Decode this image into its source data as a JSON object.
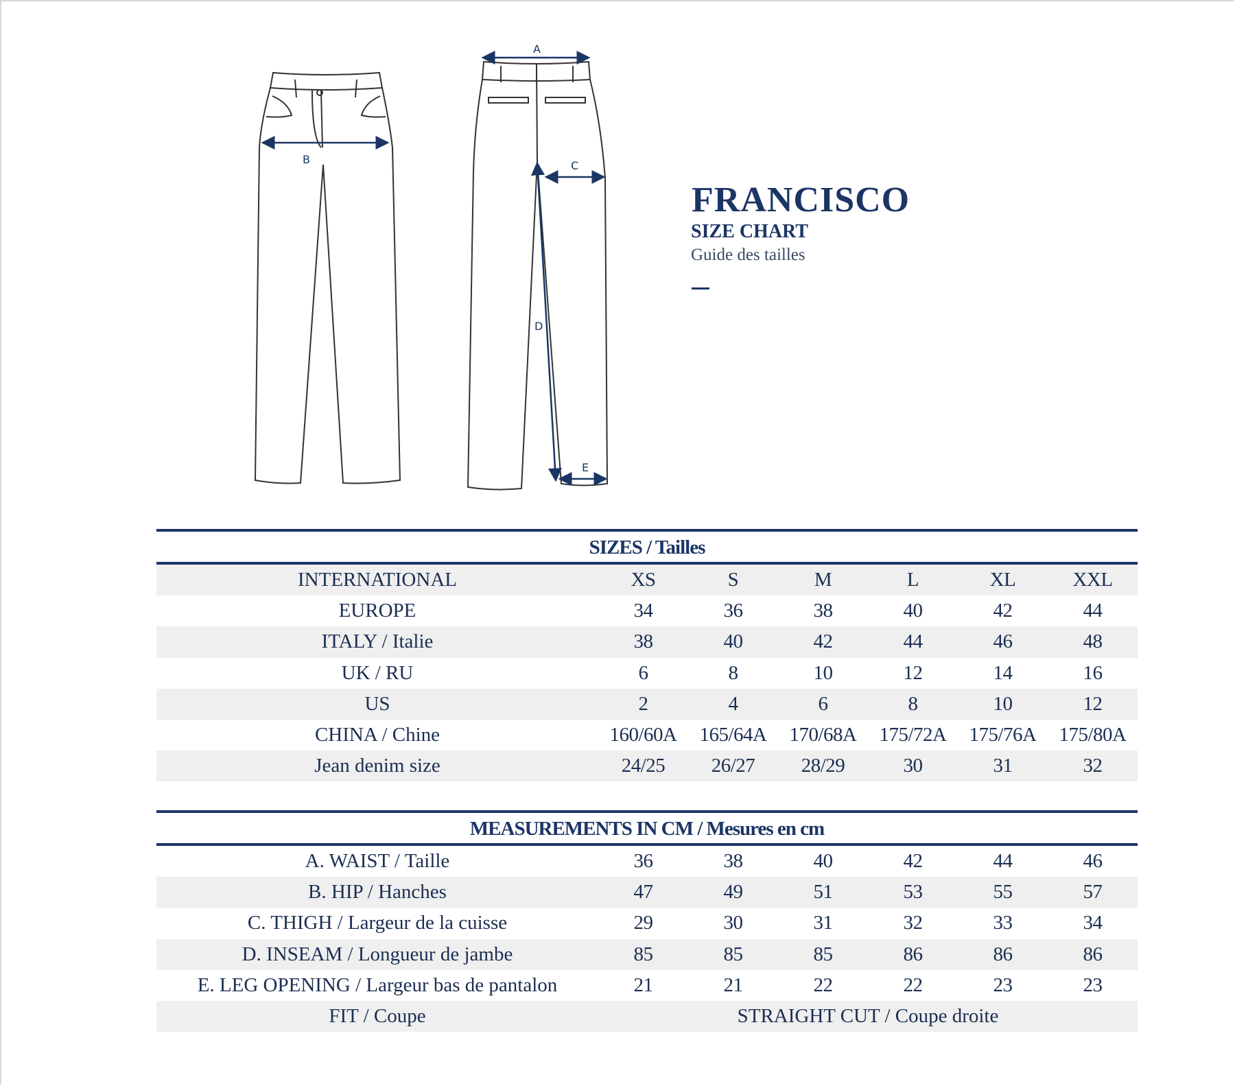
{
  "product": {
    "name": "FRANCISCO",
    "subtitle": "SIZE CHART",
    "subtitle_fr": "Guide des tailles"
  },
  "diagram": {
    "labels": {
      "A": "A",
      "B": "B",
      "C": "C",
      "D": "D",
      "E": "E"
    }
  },
  "colors": {
    "navy": "#1b3565",
    "stripe": "#efefef"
  },
  "sizes_table": {
    "title": "SIZES / Tailles",
    "rows": [
      {
        "label": "INTERNATIONAL",
        "values": [
          "XS",
          "S",
          "M",
          "L",
          "XL",
          "XXL"
        ]
      },
      {
        "label": "EUROPE",
        "values": [
          "34",
          "36",
          "38",
          "40",
          "42",
          "44"
        ]
      },
      {
        "label": "ITALY / Italie",
        "values": [
          "38",
          "40",
          "42",
          "44",
          "46",
          "48"
        ]
      },
      {
        "label": "UK / RU",
        "values": [
          "6",
          "8",
          "10",
          "12",
          "14",
          "16"
        ]
      },
      {
        "label": "US",
        "values": [
          "2",
          "4",
          "6",
          "8",
          "10",
          "12"
        ]
      },
      {
        "label": "CHINA / Chine",
        "values": [
          "160/60A",
          "165/64A",
          "170/68A",
          "175/72A",
          "175/76A",
          "175/80A"
        ]
      },
      {
        "label": "Jean denim size",
        "values": [
          "24/25",
          "26/27",
          "28/29",
          "30",
          "31",
          "32"
        ]
      }
    ]
  },
  "measurements_table": {
    "title": "MEASUREMENTS IN CM / Mesures en cm",
    "rows": [
      {
        "label": "A. WAIST / Taille",
        "values": [
          "36",
          "38",
          "40",
          "42",
          "44",
          "46"
        ]
      },
      {
        "label": "B. HIP / Hanches",
        "values": [
          "47",
          "49",
          "51",
          "53",
          "55",
          "57"
        ]
      },
      {
        "label": "C. THIGH  / Largeur de la cuisse",
        "values": [
          "29",
          "30",
          "31",
          "32",
          "33",
          "34"
        ]
      },
      {
        "label": "D. INSEAM  / Longueur de jambe",
        "values": [
          "85",
          "85",
          "85",
          "86",
          "86",
          "86"
        ]
      },
      {
        "label": "E. LEG OPENING / Largeur bas de pantalon",
        "values": [
          "21",
          "21",
          "22",
          "22",
          "23",
          "23"
        ]
      }
    ],
    "fit": {
      "label": "FIT / Coupe",
      "value": "STRAIGHT CUT / Coupe droite"
    }
  }
}
